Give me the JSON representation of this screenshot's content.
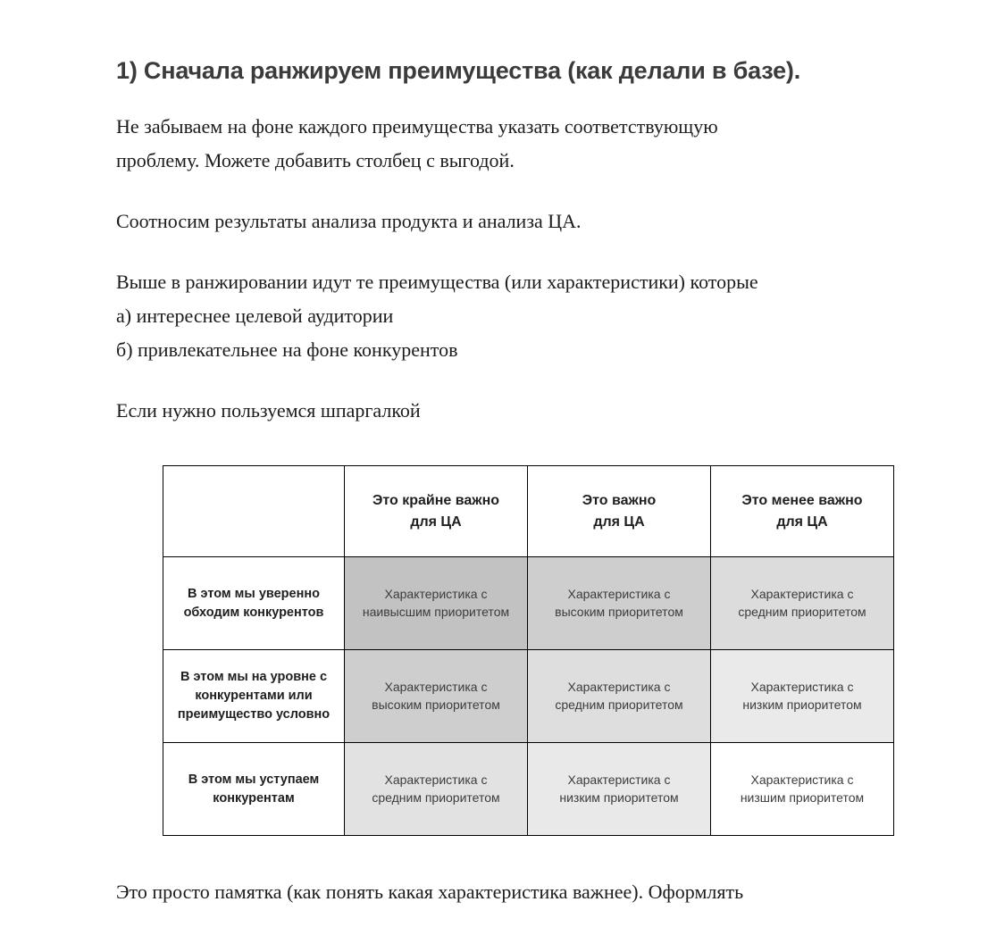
{
  "page": {
    "heading": "1) Сначала ранжируем преимущества (как делали в базе).",
    "intro": "Не забываем на фоне каждого преимущества указать соответствующую\nпроблему. Можете добавить столбец с выгодой.",
    "correlate": "Соотносим результаты анализа продукта и анализа ЦА.",
    "ranking_rules": "Выше в ранжировании идут те преимущества (или характеристики) которые\nа) интереснее целевой аудитории\nб) привлекательнее на фоне конкурентов",
    "cheatsheet_note": "Если нужно пользуемся шпаргалкой",
    "footer_note": "Это просто памятка (как понять какая характеристика важнее). Оформлять"
  },
  "cheatsheet": {
    "column_headers": [
      "Это крайне важно\nдля ЦА",
      "Это важно\nдля ЦА",
      "Это менее важно\nдля ЦА"
    ],
    "rows": [
      {
        "header": "В этом мы уверенно\nобходим конкурентов",
        "cells": [
          {
            "text": "Характеристика с\nнаивысшим приоритетом",
            "bg": "#c2c2c2"
          },
          {
            "text": "Характеристика с\nвысоким приоритетом",
            "bg": "#cecece"
          },
          {
            "text": "Характеристика с\nсредним приоритетом",
            "bg": "#dcdcdc"
          }
        ]
      },
      {
        "header": "В этом мы на уровне с\nконкурентами или\nпреимущество условно",
        "cells": [
          {
            "text": "Характеристика с\nвысоким приоритетом",
            "bg": "#cecece"
          },
          {
            "text": "Характеристика с\nсредним приоритетом",
            "bg": "#dedede"
          },
          {
            "text": "Характеристика с\nнизким приоритетом",
            "bg": "#eaeaea"
          }
        ]
      },
      {
        "header": "В этом мы уступаем\nконкурентам",
        "cells": [
          {
            "text": "Характеристика с\nсредним приоритетом",
            "bg": "#e2e2e2"
          },
          {
            "text": "Характеристика с\nнизким приоритетом",
            "bg": "#e9e9e9"
          },
          {
            "text": "Характеристика с\nнизшим приоритетом",
            "bg": "#ffffff"
          }
        ]
      }
    ]
  },
  "colors": {
    "heading_text": "#3b3b3b",
    "body_text": "#1c1c1c",
    "table_border": "#000000",
    "cell_text": "#3c3c3c"
  }
}
